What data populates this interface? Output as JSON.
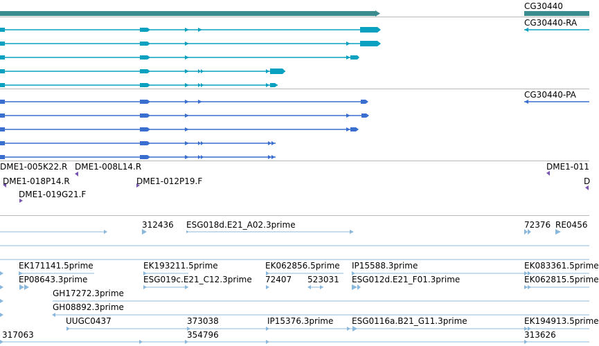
{
  "colors": {
    "gene": "#3a8c8f",
    "transcript_ra": "#0aa0c0",
    "transcript_pa": "#3a6fd0",
    "probe": "#7a55b0",
    "est": "#8ab8dc",
    "divider": "#b8b8b8"
  },
  "gene": {
    "label": "CG30440"
  },
  "transcripts_ra": {
    "label": "CG30440-RA"
  },
  "transcripts_pa": {
    "label": "CG30440-PA"
  },
  "probes": {
    "labels": [
      "DME1-005K22.R",
      "DME1-008L14.R",
      "DME1-018P14.R",
      "DME1-012P19.F",
      "DME1-019G21.F",
      "DME1-011",
      "D"
    ]
  },
  "ests": {
    "labels": [
      "312436",
      "ESG018d.E21_A02.3prime",
      "72376",
      "RE0456",
      "EK171141.5prime",
      "EK193211.5prime",
      "EK062856.5prime",
      "IP15588.3prime",
      "EK083361.5prime",
      "EP08643.3prime",
      "ESG019c.E21_C12.3prime",
      "72407",
      "523031",
      "ESG012d.E21_F01.3prime",
      "EK062815.5prime",
      "GH17272.3prime",
      "GH08892.3prime",
      "UUGC0437",
      "373038",
      "IP15376.3prime",
      "ESG0116a.B21_G11.3prime",
      "EK194913.5prime",
      "317063",
      "354796",
      "313626"
    ]
  }
}
